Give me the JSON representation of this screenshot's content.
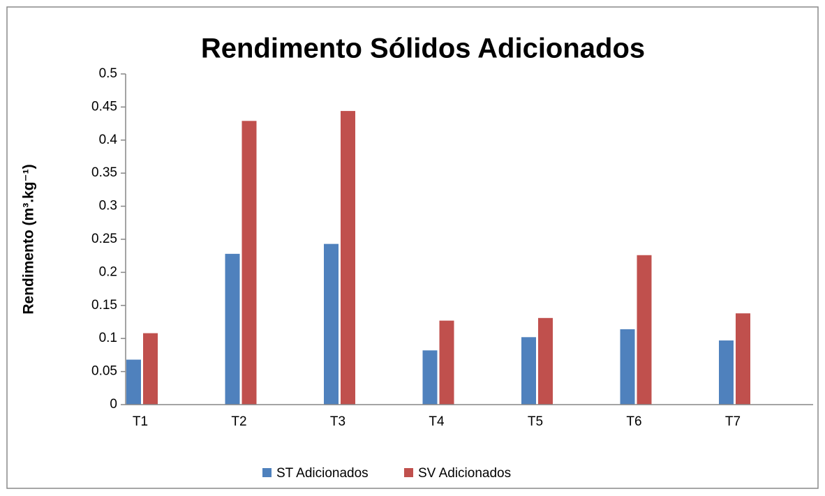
{
  "chart_data": {
    "type": "bar",
    "title": "Rendimento Sólidos Adicionados",
    "y_label": "Rendimento (m³.kg⁻¹)",
    "categories": [
      "T1",
      "T2",
      "T3",
      "T4",
      "T5",
      "T6",
      "T7"
    ],
    "series": [
      {
        "name": "ST Adicionados",
        "color": "#4f81bd",
        "values": [
          0.068,
          0.228,
          0.243,
          0.082,
          0.102,
          0.114,
          0.097
        ]
      },
      {
        "name": "SV Adicionados",
        "color": "#c0504d",
        "values": [
          0.108,
          0.429,
          0.444,
          0.127,
          0.131,
          0.226,
          0.138
        ]
      }
    ],
    "ylim": [
      0,
      0.5
    ],
    "yticks": [
      0,
      0.05,
      0.1,
      0.15,
      0.2,
      0.25,
      0.3,
      0.35,
      0.4,
      0.45,
      0.5
    ],
    "grid": false,
    "legend": "bottom"
  }
}
